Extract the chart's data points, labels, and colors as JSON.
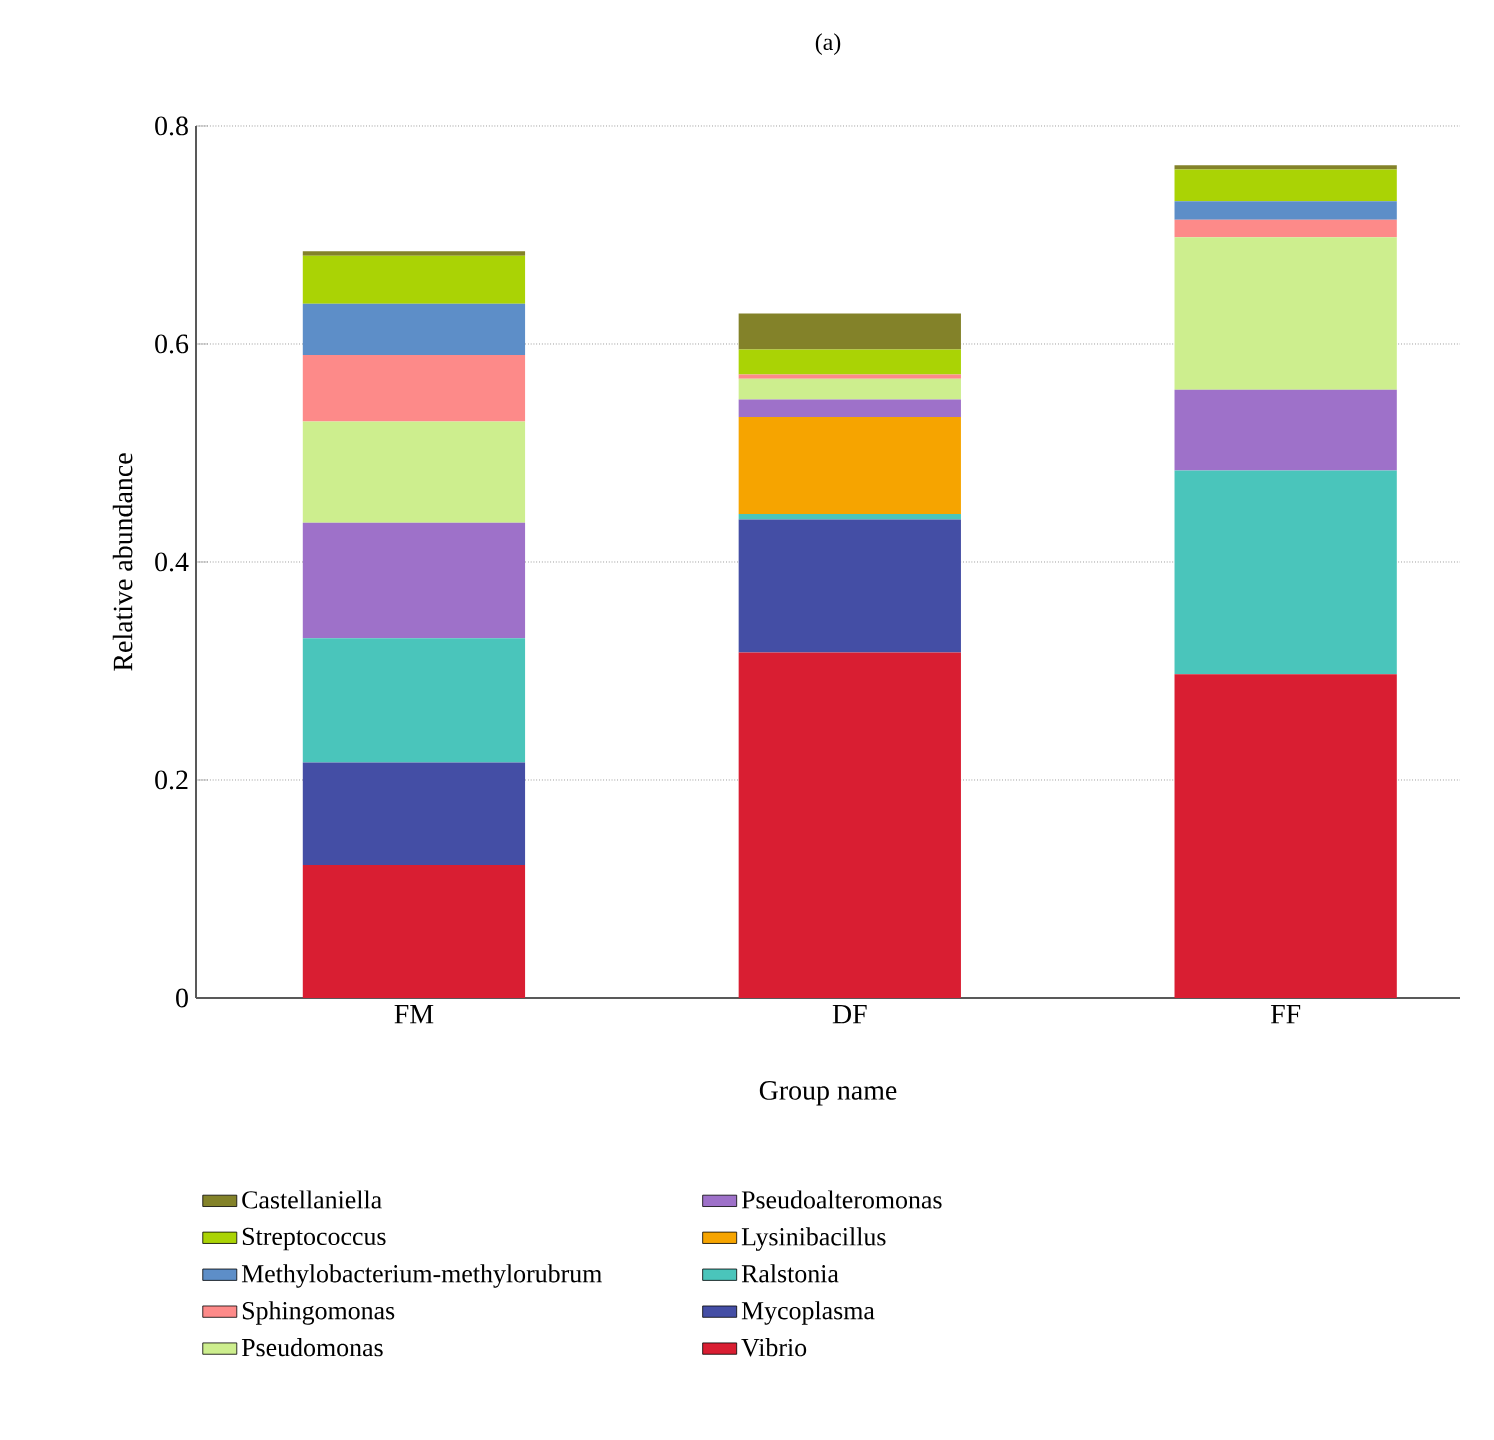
{
  "chart_data": {
    "type": "bar",
    "stacked": true,
    "title": "(a)",
    "xlabel": "Group name",
    "ylabel": "Relative abundance",
    "categories": [
      "FM",
      "DF",
      "FF"
    ],
    "series": [
      {
        "name": "Vibrio",
        "color": "#d91e32",
        "values": [
          0.122,
          0.317,
          0.297
        ]
      },
      {
        "name": "Mycoplasma",
        "color": "#444ea5",
        "values": [
          0.094,
          0.122,
          0
        ]
      },
      {
        "name": "Ralstonia",
        "color": "#4ac5bb",
        "values": [
          0.114,
          0.005,
          0.187
        ]
      },
      {
        "name": "Lysinibacillus",
        "color": "#f6a400",
        "values": [
          0,
          0.089,
          0
        ]
      },
      {
        "name": "Pseudoalteromonas",
        "color": "#9e71c9",
        "values": [
          0.106,
          0.016,
          0.074
        ]
      },
      {
        "name": "Pseudomonas",
        "color": "#cdee8e",
        "values": [
          0.093,
          0.019,
          0.14
        ]
      },
      {
        "name": "Sphingomonas",
        "color": "#fd8a89",
        "values": [
          0.061,
          0.004,
          0.016
        ]
      },
      {
        "name": "Methylobacterium-methylorubrum",
        "color": "#5d8ec8",
        "values": [
          0.047,
          0,
          0.017
        ]
      },
      {
        "name": "Streptococcus",
        "color": "#aad305",
        "values": [
          0.044,
          0.023,
          0.029
        ]
      },
      {
        "name": "Castellaniella",
        "color": "#838229",
        "values": [
          0.004,
          0.033,
          0.004
        ]
      }
    ],
    "ylim": [
      0,
      0.8
    ],
    "yticks": [
      0,
      0.2,
      0.4,
      0.6,
      0.8
    ],
    "grid": "y",
    "legend": "bottom"
  }
}
